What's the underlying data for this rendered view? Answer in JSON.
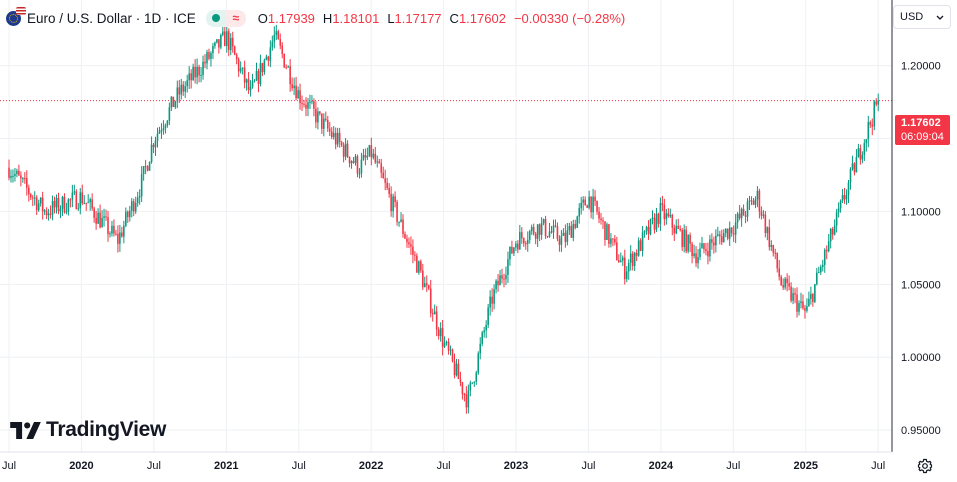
{
  "legend": {
    "title": "Euro / U.S. Dollar · 1D · ICE",
    "o_label": "O",
    "o_value": "1.17939",
    "h_label": "H",
    "h_value": "1.18101",
    "l_label": "L",
    "l_value": "1.17177",
    "c_label": "C",
    "c_value": "1.17602",
    "change": "−0.00330 (−0.28%)"
  },
  "currency_button": {
    "label": "USD"
  },
  "brand": {
    "name": "TradingView"
  },
  "price_tag": {
    "price": "1.17602",
    "countdown": "06:09:04"
  },
  "colors": {
    "up": "#089981",
    "down": "#f23645",
    "grid": "#eef0f3",
    "axis": "#131722"
  },
  "icons": [
    "eur-usd-flag-icon",
    "settings-gear-icon",
    "chevron-down-icon",
    "tradingview-logo-icon"
  ],
  "chart_data": {
    "type": "candlestick",
    "series": [
      {
        "name": "EUR/USD",
        "x": [
          "2019-07",
          "2019-10",
          "2020-01",
          "2020-03",
          "2020-04",
          "2020-06",
          "2020-07",
          "2020-09",
          "2021-01",
          "2021-03",
          "2021-05",
          "2021-07",
          "2021-09",
          "2021-12",
          "2022-01",
          "2022-03",
          "2022-05",
          "2022-07",
          "2022-09",
          "2022-11",
          "2023-01",
          "2023-03",
          "2023-05",
          "2023-07",
          "2023-10",
          "2024-01",
          "2024-04",
          "2024-07",
          "2024-09",
          "2024-11",
          "2025-01",
          "2025-03",
          "2025-05",
          "2025-07"
        ],
        "values": [
          1.13,
          1.1,
          1.11,
          1.09,
          1.08,
          1.12,
          1.15,
          1.18,
          1.22,
          1.18,
          1.22,
          1.18,
          1.16,
          1.13,
          1.14,
          1.1,
          1.06,
          1.01,
          0.97,
          1.04,
          1.08,
          1.09,
          1.08,
          1.11,
          1.06,
          1.1,
          1.07,
          1.09,
          1.11,
          1.05,
          1.03,
          1.08,
          1.13,
          1.176
        ]
      }
    ],
    "x_ticks": [
      "Jul",
      "2020",
      "Jul",
      "2021",
      "Jul",
      "2022",
      "Jul",
      "2023",
      "Jul",
      "2024",
      "Jul",
      "2025",
      "Jul"
    ],
    "y_ticks": [
      "1.20000",
      "1.15000",
      "1.10000",
      "1.05000",
      "1.00000",
      "0.95000"
    ],
    "ylim": [
      0.935,
      1.245
    ],
    "last_price": 1.17602,
    "grid": true
  }
}
